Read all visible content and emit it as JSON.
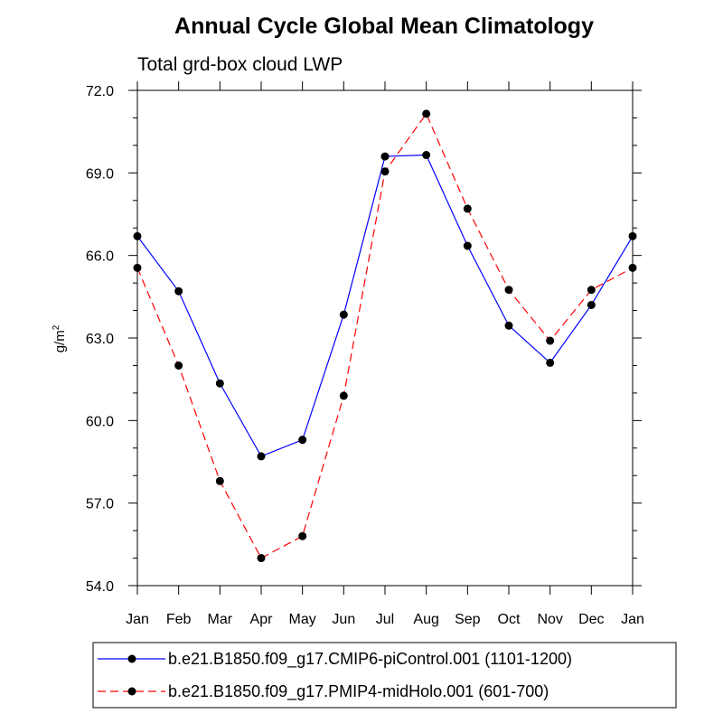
{
  "chart_data": {
    "type": "line",
    "title": "Annual Cycle Global Mean Climatology",
    "subtitle": "Total grd-box cloud LWP",
    "xlabel": "",
    "ylabel": "g/m",
    "ylabel_superscript": "2",
    "categories": [
      "Jan",
      "Feb",
      "Mar",
      "Apr",
      "May",
      "Jun",
      "Jul",
      "Aug",
      "Sep",
      "Oct",
      "Nov",
      "Dec",
      "Jan"
    ],
    "ylim": [
      54.0,
      72.0
    ],
    "yticks": [
      54.0,
      57.0,
      60.0,
      63.0,
      66.0,
      69.0,
      72.0
    ],
    "ytick_labels": [
      "54.0",
      "57.0",
      "60.0",
      "63.0",
      "66.0",
      "69.0",
      "72.0"
    ],
    "grid": false,
    "legend_position": "bottom",
    "series": [
      {
        "name": "b.e21.B1850.f09_g17.CMIP6-piControl.001 (1101-1200)",
        "color": "#0000ff",
        "line_style": "solid",
        "values": [
          66.7,
          64.7,
          61.35,
          58.7,
          59.3,
          63.85,
          69.6,
          69.65,
          66.35,
          63.45,
          62.1,
          64.2,
          66.7
        ]
      },
      {
        "name": "b.e21.B1850.f09_g17.PMIP4-midHolo.001 (601-700)",
        "color": "#ff0000",
        "line_style": "dashed",
        "values": [
          65.55,
          62.0,
          57.8,
          55.0,
          55.8,
          60.9,
          69.05,
          71.15,
          67.7,
          64.75,
          62.9,
          64.75,
          65.55
        ]
      }
    ]
  }
}
